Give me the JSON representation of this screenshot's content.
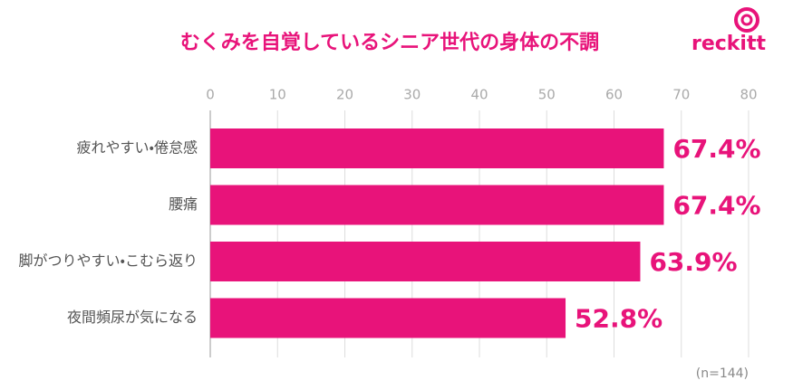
{
  "chart_data": {
    "type": "bar",
    "orientation": "horizontal",
    "title": "むくみを自覚しているシニア世代の身体の不調",
    "logo": "reckitt",
    "note": "(n=144)",
    "categories": [
      "疲れやすい・倦怠感",
      "腰痛",
      "脚がつりやすい・こむら返り",
      "夜間頻尿が気になる"
    ],
    "values": [
      67.4,
      67.4,
      63.9,
      52.8
    ],
    "value_labels": [
      "67.4%",
      "67.4%",
      "63.9%",
      "52.8%"
    ],
    "color": "#e8137a",
    "xlim": [
      0,
      80
    ],
    "xticks": [
      0,
      10,
      20,
      30,
      40,
      50,
      60,
      70,
      80
    ],
    "grid": true
  }
}
